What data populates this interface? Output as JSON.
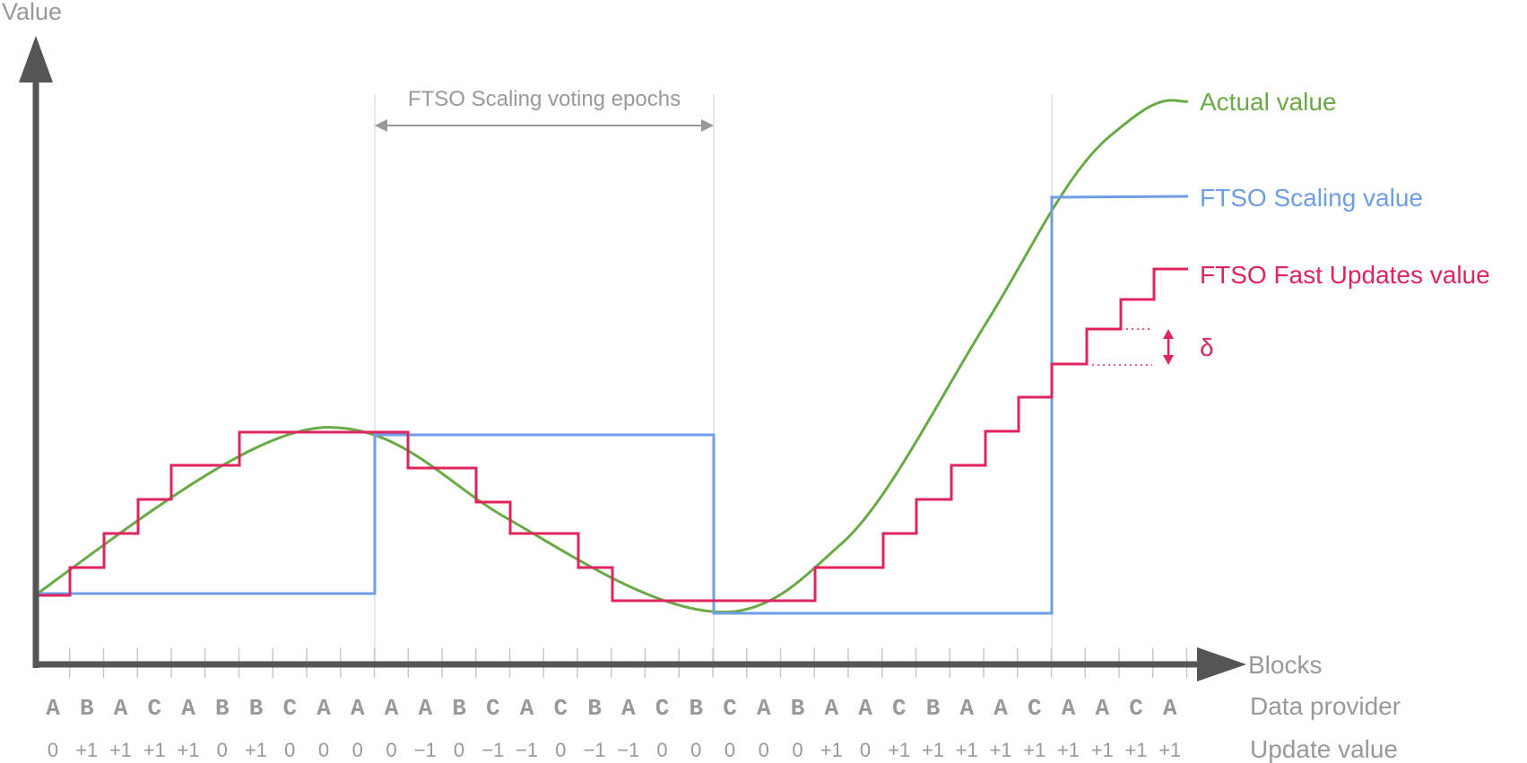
{
  "axes": {
    "y_label": "Value",
    "x_label": "Blocks",
    "row1_label": "Data provider",
    "row2_label": "Update value"
  },
  "annotations": {
    "epoch_label": "FTSO Scaling voting epochs",
    "delta_label": "δ"
  },
  "legend": {
    "actual": "Actual value",
    "scaling": "FTSO Scaling value",
    "fast": "FTSO Fast Updates value"
  },
  "providers": [
    "A",
    "B",
    "A",
    "C",
    "A",
    "B",
    "B",
    "C",
    "A",
    "A",
    "A",
    "A",
    "B",
    "C",
    "A",
    "C",
    "B",
    "A",
    "C",
    "B",
    "C",
    "A",
    "B",
    "A",
    "A",
    "C",
    "B",
    "A",
    "A",
    "C",
    "A",
    "A",
    "C",
    "A"
  ],
  "updates": [
    "0",
    "+1",
    "+1",
    "+1",
    "+1",
    "0",
    "+1",
    "0",
    "0",
    "0",
    "0",
    "−1",
    "0",
    "−1",
    "−1",
    "0",
    "−1",
    "−1",
    "0",
    "0",
    "0",
    "0",
    "0",
    "+1",
    "0",
    "+1",
    "+1",
    "+1",
    "+1",
    "+1",
    "+1",
    "+1",
    "+1",
    "+1"
  ],
  "colors": {
    "axis": "#555555",
    "grid": "#e0e0e0",
    "label": "#999999",
    "actual": "#6aaa46",
    "scaling": "#6f9ee6",
    "fast": "#e0245e"
  }
}
